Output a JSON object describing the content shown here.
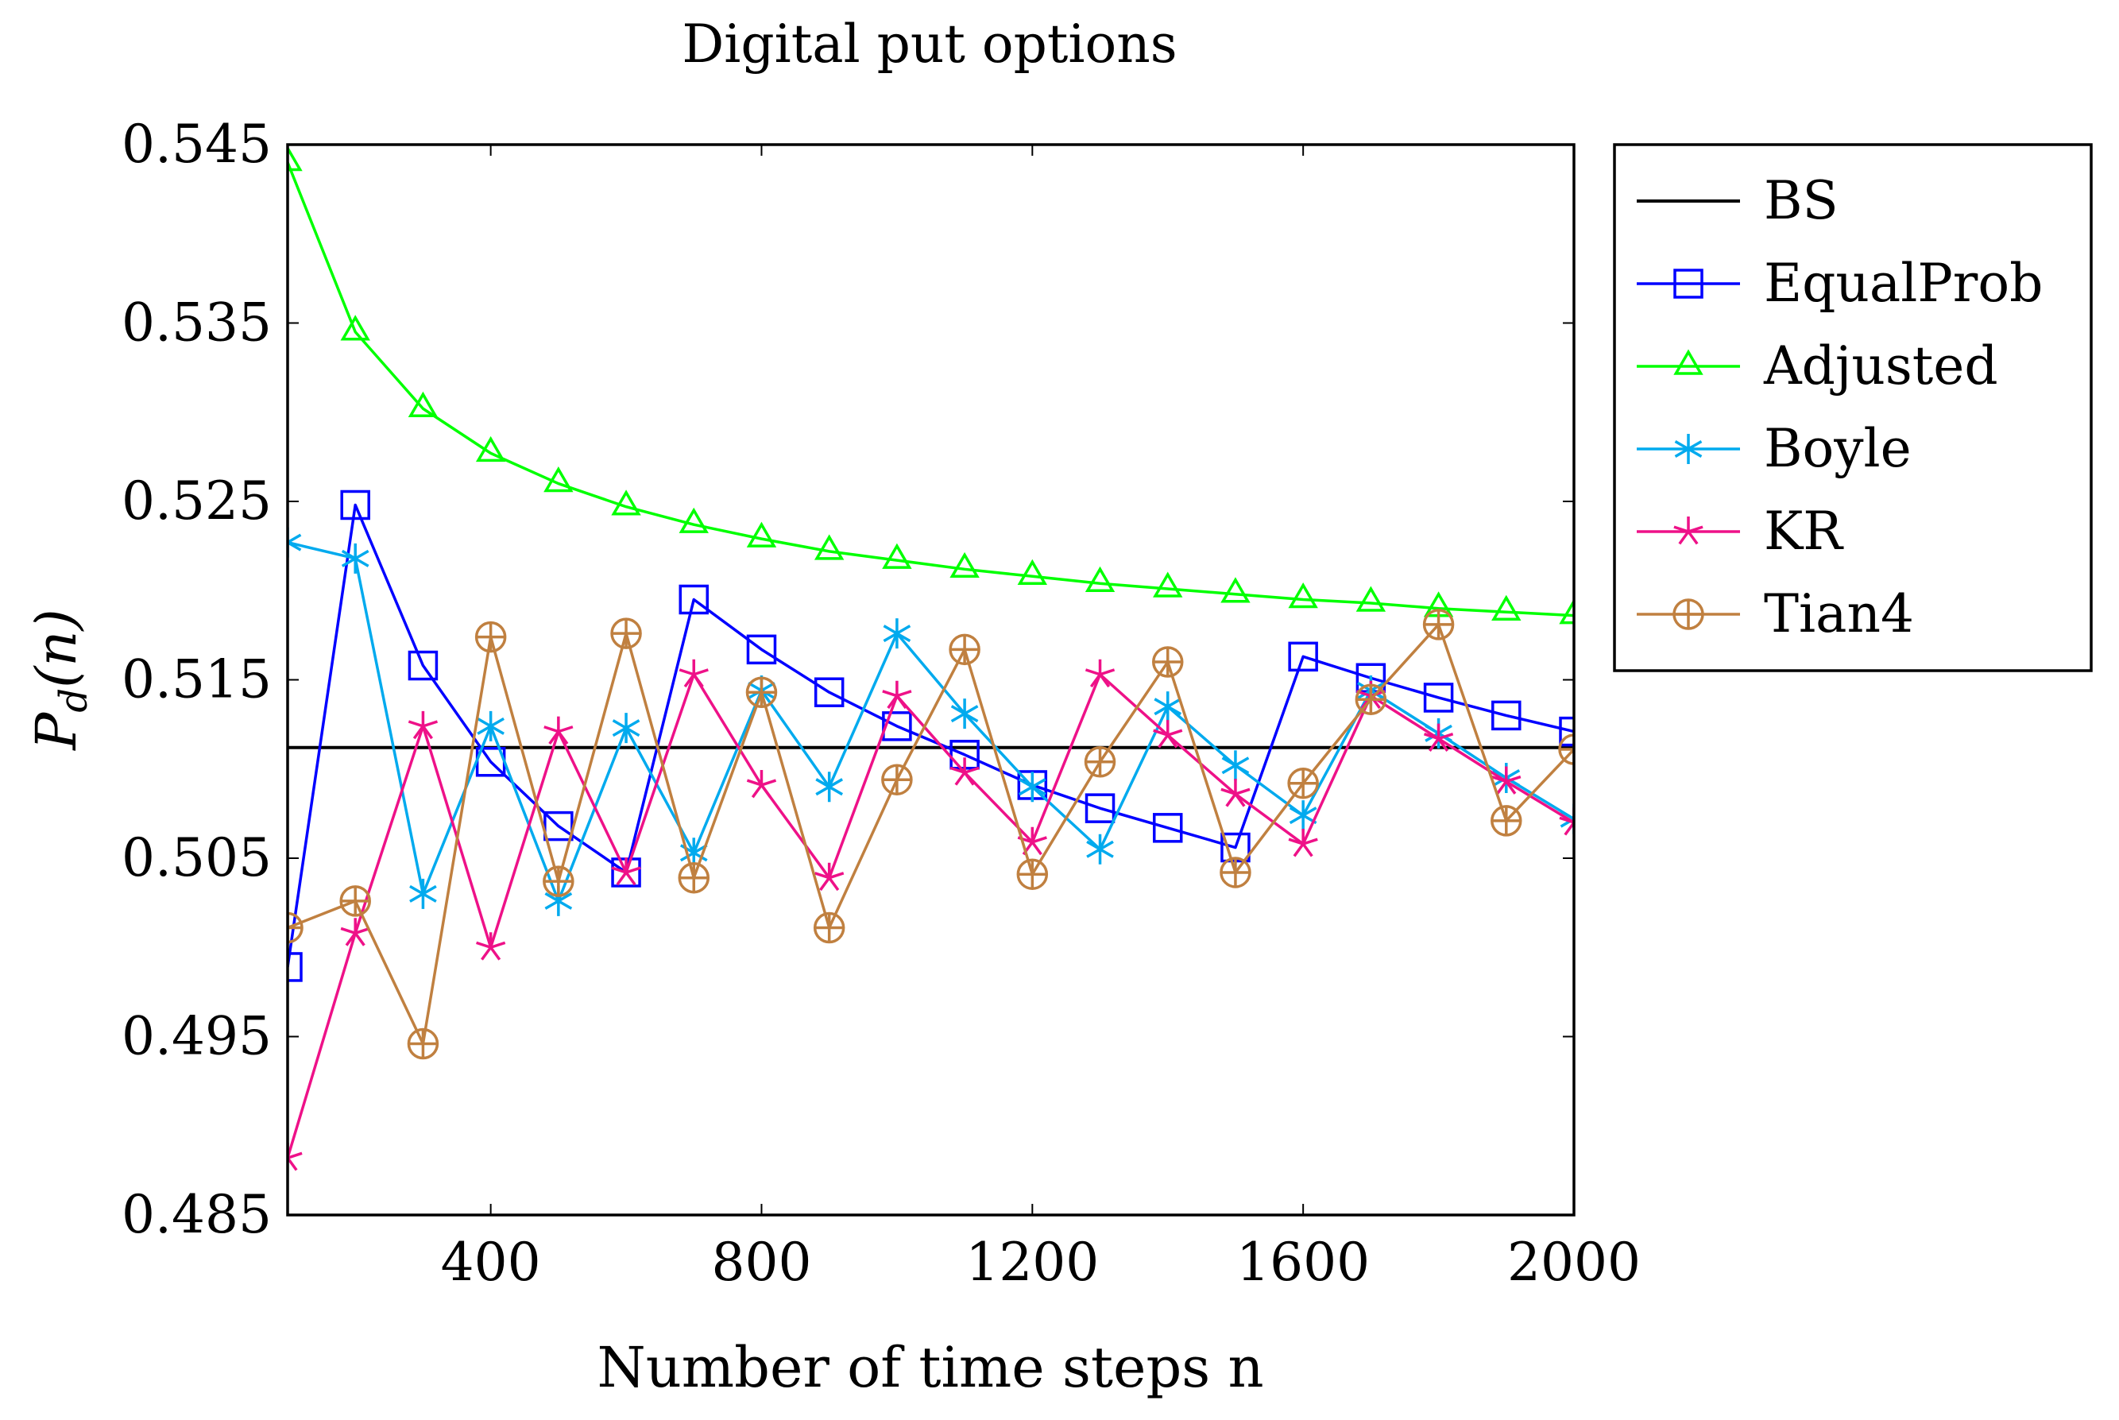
{
  "chart_data": {
    "type": "line",
    "title": "Digital put options",
    "xlabel": "Number of time steps n",
    "ylabel": {
      "main": "P",
      "sub": "d",
      "arg": "(n)"
    },
    "xlim": [
      100,
      2000
    ],
    "ylim": [
      0.485,
      0.545
    ],
    "xticks": [
      400,
      800,
      1200,
      1600,
      2000
    ],
    "yticks": [
      0.485,
      0.495,
      0.505,
      0.515,
      0.525,
      0.535,
      0.545
    ],
    "ytick_labels": [
      "0.485",
      "0.495",
      "0.505",
      "0.515",
      "0.525",
      "0.535",
      "0.545"
    ],
    "xtick_labels": [
      "400",
      "800",
      "1200",
      "1600",
      "2000"
    ],
    "legend_position": "outside-right-top",
    "x": [
      100,
      200,
      300,
      400,
      500,
      600,
      700,
      800,
      900,
      1000,
      1100,
      1200,
      1300,
      1400,
      1500,
      1600,
      1700,
      1800,
      1900,
      2000
    ],
    "series": [
      {
        "name": "BS",
        "color": "#000000",
        "marker": "none",
        "x": [
          100,
          2000
        ],
        "values": [
          0.5112,
          0.5112
        ]
      },
      {
        "name": "EqualProb",
        "color": "#0000ff",
        "marker": "square",
        "values": [
          0.4989,
          0.5248,
          0.5158,
          0.5104,
          0.5068,
          0.5042,
          0.5195,
          0.5167,
          0.5143,
          0.5124,
          0.5108,
          0.5091,
          0.5078,
          0.5067,
          0.5056,
          0.5163,
          0.5151,
          0.514,
          0.513,
          0.5121
        ]
      },
      {
        "name": "Adjusted",
        "color": "#00ff00",
        "marker": "triangle",
        "values": [
          0.544,
          0.5345,
          0.5302,
          0.5277,
          0.526,
          0.5247,
          0.5237,
          0.5229,
          0.5222,
          0.5217,
          0.5212,
          0.5208,
          0.5204,
          0.5201,
          0.5198,
          0.5195,
          0.5193,
          0.519,
          0.5188,
          0.5186
        ]
      },
      {
        "name": "Boyle",
        "color": "#00aaee",
        "marker": "asterisk",
        "values": [
          0.5227,
          0.5218,
          0.503,
          0.5124,
          0.5026,
          0.5123,
          0.5053,
          0.5144,
          0.509,
          0.5176,
          0.5131,
          0.509,
          0.5055,
          0.5135,
          0.5102,
          0.5074,
          0.5144,
          0.512,
          0.5095,
          0.5072
        ]
      },
      {
        "name": "KR",
        "color": "#ee1188",
        "marker": "star",
        "values": [
          0.4882,
          0.5008,
          0.5124,
          0.5,
          0.5121,
          0.5042,
          0.5153,
          0.5091,
          0.5039,
          0.5141,
          0.5098,
          0.5059,
          0.5153,
          0.5119,
          0.5086,
          0.5058,
          0.5141,
          0.5117,
          0.5093,
          0.507
        ]
      },
      {
        "name": "Tian4",
        "color": "#c08040",
        "marker": "oplus",
        "values": [
          0.5011,
          0.5026,
          0.4946,
          0.5174,
          0.5037,
          0.5176,
          0.5039,
          0.5143,
          0.5011,
          0.5094,
          0.5167,
          0.5041,
          0.5104,
          0.516,
          0.5042,
          0.5092,
          0.5139,
          0.5181,
          0.5071,
          0.5111
        ]
      }
    ]
  }
}
